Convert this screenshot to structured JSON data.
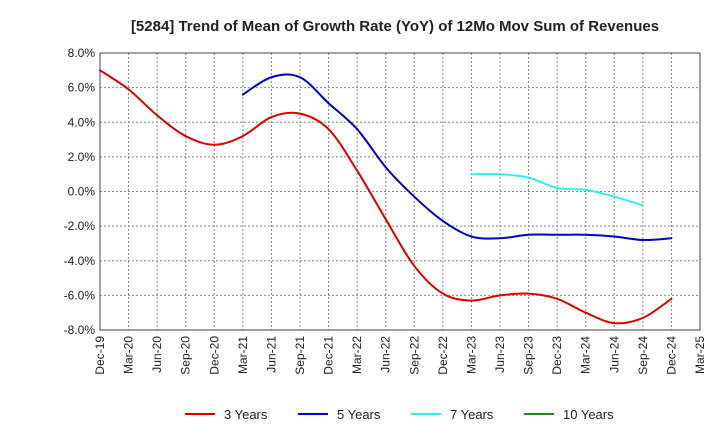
{
  "chart_data": {
    "type": "line",
    "title": "[5284]  Trend of Mean of Growth Rate (YoY) of 12Mo Mov Sum of Revenues",
    "xlabel": "",
    "ylabel": "",
    "ylim": [
      -8,
      8
    ],
    "y_ticks": [
      8,
      6,
      4,
      2,
      0,
      -2,
      -4,
      -6,
      -8
    ],
    "y_tick_labels": [
      "8.0%",
      "6.0%",
      "4.0%",
      "2.0%",
      "0.0%",
      "-2.0%",
      "-4.0%",
      "-6.0%",
      "-8.0%"
    ],
    "x_tick_labels": [
      "Dec-19",
      "Mar-20",
      "Jun-20",
      "Sep-20",
      "Dec-20",
      "Mar-21",
      "Jun-21",
      "Sep-21",
      "Dec-21",
      "Mar-22",
      "Jun-22",
      "Sep-22",
      "Dec-22",
      "Mar-23",
      "Jun-23",
      "Sep-23",
      "Dec-23",
      "Mar-24",
      "Jun-24",
      "Sep-24",
      "Dec-24",
      "Mar-25"
    ],
    "grid": true,
    "legend_position": "bottom",
    "series": [
      {
        "name": "3 Years",
        "color": "#dd0000",
        "start_index": 0,
        "values": [
          7.0,
          5.9,
          4.4,
          3.2,
          2.7,
          3.2,
          4.3,
          4.5,
          3.6,
          1.2,
          -1.6,
          -4.3,
          -5.9,
          -6.3,
          -6.0,
          -5.9,
          -6.2,
          -7.0,
          -7.6,
          -7.3,
          -6.2
        ]
      },
      {
        "name": "5 Years",
        "color": "#0000cc",
        "start_index": 5,
        "values": [
          5.6,
          6.6,
          6.6,
          5.1,
          3.6,
          1.4,
          -0.3,
          -1.7,
          -2.6,
          -2.7,
          -2.5,
          -2.5,
          -2.5,
          -2.6,
          -2.8,
          -2.7
        ]
      },
      {
        "name": "7 Years",
        "color": "#33eeee",
        "start_index": 13,
        "values": [
          1.0,
          1.0,
          0.8,
          0.2,
          0.1,
          -0.3,
          -0.8
        ]
      },
      {
        "name": "10 Years",
        "color": "#228822",
        "start_index": 0,
        "values": []
      }
    ]
  }
}
